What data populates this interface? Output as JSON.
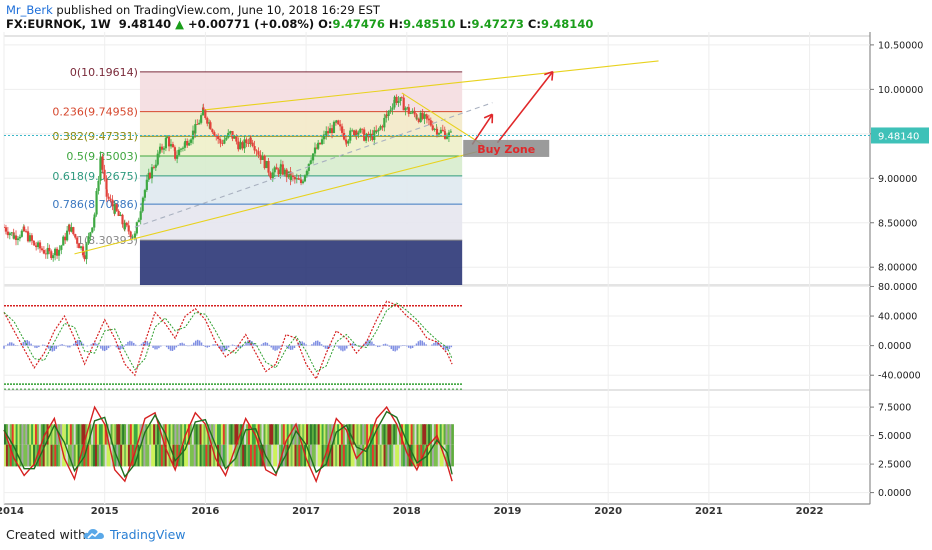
{
  "header": {
    "author": "Mr_Berk",
    "published_text": "published on TradingView.com, June 10, 2018 16:29 EST",
    "symbol": "FX:EURNOK, 1W",
    "price": "9.48140",
    "change": "+0.00771 (+0.08%)",
    "open_label": "O:",
    "open": "9.47476",
    "high_label": "H:",
    "high": "9.48510",
    "low_label": "L:",
    "low": "9.47273",
    "close_label": "C:",
    "close": "9.48140"
  },
  "footer": {
    "created_with": "Created with",
    "brand": "TradingView"
  },
  "chart_data": [
    {
      "type": "candlestick",
      "pane": "price",
      "symbol": "FX:EURNOK",
      "interval": "1W",
      "ylim": [
        7.8,
        10.6
      ],
      "y_ticks": [
        "10.50000",
        "10.00000",
        "9.50000",
        "9.00000",
        "8.50000",
        "8.00000"
      ],
      "x_ticks": [
        "2014",
        "2015",
        "2016",
        "2017",
        "2018",
        "2019",
        "2020",
        "2021",
        "2022"
      ],
      "xlim": [
        2014.0,
        2022.6
      ],
      "last_price": 9.4814,
      "last_price_label": "9.48140",
      "series": [
        {
          "name": "close_path",
          "x": [
            2014.0,
            2014.1,
            2014.2,
            2014.3,
            2014.45,
            2014.55,
            2014.65,
            2014.8,
            2014.9,
            2014.96,
            2015.02,
            2015.1,
            2015.2,
            2015.3,
            2015.38,
            2015.45,
            2015.55,
            2015.62,
            2015.7,
            2015.8,
            2015.9,
            2015.98,
            2016.05,
            2016.15,
            2016.25,
            2016.35,
            2016.45,
            2016.55,
            2016.65,
            2016.75,
            2016.85,
            2016.95,
            2017.05,
            2017.12,
            2017.2,
            2017.3,
            2017.4,
            2017.5,
            2017.6,
            2017.7,
            2017.8,
            2017.88,
            2017.95,
            2018.02,
            2018.1,
            2018.2,
            2018.3,
            2018.38,
            2018.44
          ],
          "values": [
            8.45,
            8.35,
            8.4,
            8.25,
            8.15,
            8.2,
            8.45,
            8.15,
            8.6,
            9.25,
            8.8,
            8.65,
            8.45,
            8.35,
            8.8,
            9.05,
            9.3,
            9.45,
            9.25,
            9.4,
            9.55,
            9.75,
            9.6,
            9.4,
            9.5,
            9.35,
            9.45,
            9.25,
            9.05,
            9.1,
            9.0,
            8.95,
            9.25,
            9.35,
            9.5,
            9.6,
            9.45,
            9.55,
            9.45,
            9.5,
            9.7,
            9.9,
            9.85,
            9.75,
            9.7,
            9.65,
            9.55,
            9.5,
            9.48
          ]
        }
      ],
      "fibonacci": [
        {
          "label": "0(10.19614)",
          "level": 10.19614,
          "color": "#7a2a3a"
        },
        {
          "label": "0.236(9.74958)",
          "level": 9.74958,
          "color": "#d6482e"
        },
        {
          "label": "0.382(9.47331)",
          "level": 9.47331,
          "color": "#8a8a10"
        },
        {
          "label": "0.5(9.25003)",
          "level": 9.25003,
          "color": "#3fa63f"
        },
        {
          "label": "0.618(9.02675)",
          "level": 9.02675,
          "color": "#2f9a7f"
        },
        {
          "label": "0.786(8.70886)",
          "level": 8.70886,
          "color": "#3b78c0"
        },
        {
          "label": "1(8.30393)",
          "level": 8.30393,
          "color": "#888888"
        }
      ],
      "fib_range_x": [
        2015.35,
        2018.55
      ],
      "trendlines": [
        {
          "name": "upper-channel",
          "x": [
            2016.0,
            2020.5
          ],
          "values": [
            9.77,
            10.32
          ]
        },
        {
          "name": "lower-channel",
          "x": [
            2014.7,
            2018.7
          ],
          "values": [
            8.15,
            9.3
          ]
        },
        {
          "name": "dashed-projection",
          "x": [
            2015.3,
            2018.85
          ],
          "values": [
            8.45,
            9.85
          ]
        },
        {
          "name": "descending-line",
          "x": [
            2017.95,
            2018.75
          ],
          "values": [
            9.96,
            9.38
          ]
        },
        {
          "name": "arrow-1",
          "x": [
            2018.65,
            2018.85
          ],
          "values": [
            9.38,
            9.72
          ]
        },
        {
          "name": "arrow-2",
          "x": [
            2018.9,
            2019.45
          ],
          "values": [
            9.4,
            10.2
          ]
        }
      ],
      "annotation": {
        "text": "Buy Zone",
        "x": 2018.62,
        "y": 9.33
      }
    },
    {
      "type": "line",
      "pane": "oscillator",
      "ylim": [
        -60,
        82
      ],
      "y_ticks": [
        "80.0000",
        "40.0000",
        "0.0000",
        "-40.0000"
      ],
      "upper_band": 54,
      "lower_band": -52,
      "series": [
        {
          "name": "oscillator",
          "x": [
            2014.0,
            2014.1,
            2014.2,
            2014.3,
            2014.4,
            2014.5,
            2014.6,
            2014.7,
            2014.8,
            2014.9,
            2015.0,
            2015.1,
            2015.2,
            2015.3,
            2015.4,
            2015.5,
            2015.6,
            2015.7,
            2015.8,
            2015.9,
            2016.0,
            2016.1,
            2016.2,
            2016.3,
            2016.4,
            2016.5,
            2016.6,
            2016.7,
            2016.8,
            2016.9,
            2017.0,
            2017.1,
            2017.2,
            2017.3,
            2017.4,
            2017.5,
            2017.6,
            2017.7,
            2017.8,
            2017.9,
            2018.0,
            2018.1,
            2018.2,
            2018.3,
            2018.4,
            2018.45
          ],
          "values": [
            45,
            20,
            -5,
            -30,
            -10,
            20,
            40,
            10,
            -25,
            5,
            35,
            10,
            -25,
            -40,
            5,
            45,
            30,
            10,
            40,
            50,
            35,
            5,
            -15,
            -5,
            15,
            -10,
            -35,
            -25,
            15,
            10,
            -25,
            -45,
            -10,
            20,
            10,
            -10,
            5,
            35,
            60,
            55,
            40,
            30,
            10,
            5,
            -10,
            -25
          ]
        }
      ]
    },
    {
      "type": "line",
      "pane": "momentum",
      "ylim": [
        -1.0,
        9.0
      ],
      "y_ticks": [
        "7.5000",
        "5.0000",
        "2.5000",
        "0.0000"
      ],
      "series": [
        {
          "name": "momentum",
          "x": [
            2014.0,
            2014.1,
            2014.2,
            2014.3,
            2014.4,
            2014.5,
            2014.6,
            2014.7,
            2014.8,
            2014.9,
            2015.0,
            2015.1,
            2015.2,
            2015.3,
            2015.4,
            2015.5,
            2015.6,
            2015.7,
            2015.8,
            2015.9,
            2016.0,
            2016.1,
            2016.2,
            2016.3,
            2016.4,
            2016.5,
            2016.6,
            2016.7,
            2016.8,
            2016.9,
            2017.0,
            2017.1,
            2017.2,
            2017.3,
            2017.4,
            2017.5,
            2017.6,
            2017.7,
            2017.8,
            2017.9,
            2018.0,
            2018.1,
            2018.2,
            2018.3,
            2018.4,
            2018.45
          ],
          "values": [
            5.5,
            3.0,
            1.5,
            2.5,
            5.0,
            6.5,
            3.0,
            1.2,
            4.5,
            7.5,
            6.0,
            2.0,
            1.0,
            3.5,
            6.5,
            7.0,
            4.0,
            2.0,
            5.0,
            7.0,
            6.0,
            3.0,
            1.5,
            4.0,
            6.5,
            5.0,
            2.0,
            1.5,
            4.5,
            6.0,
            3.0,
            1.0,
            3.5,
            6.5,
            5.5,
            3.0,
            4.0,
            6.5,
            7.5,
            6.0,
            3.5,
            2.0,
            4.0,
            5.0,
            2.5,
            1.0
          ]
        }
      ]
    }
  ]
}
